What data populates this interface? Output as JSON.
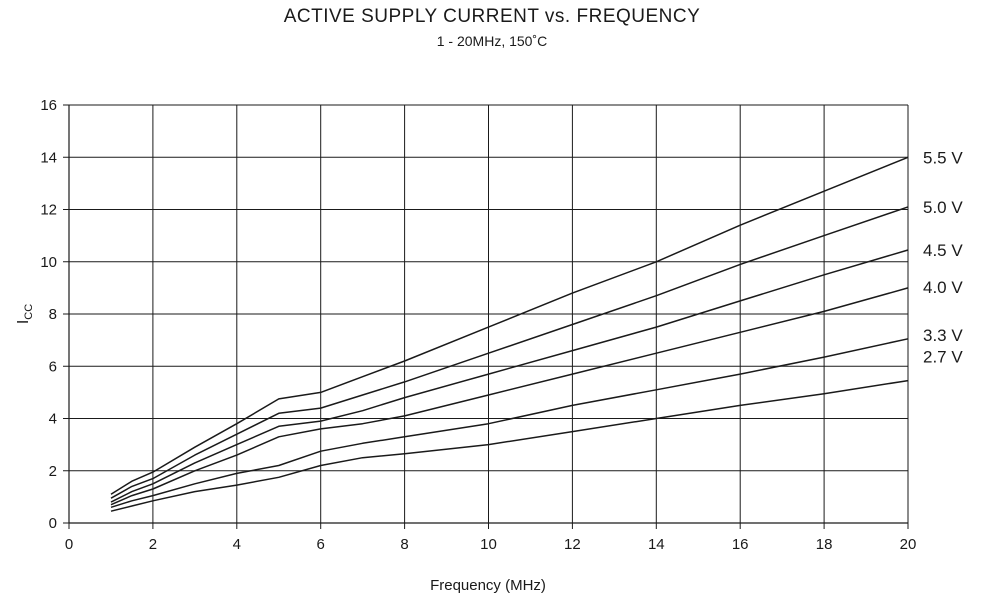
{
  "chart_data": {
    "type": "line",
    "title": "ACTIVE SUPPLY CURRENT vs. FREQUENCY",
    "subtitle": "1 - 20MHz, 150˚C",
    "xlabel": "Frequency (MHz)",
    "ylabel_main": "I",
    "ylabel_sub": "CC",
    "xlim": [
      0,
      20
    ],
    "ylim": [
      0,
      16
    ],
    "x_ticks": [
      "0",
      "2",
      "4",
      "6",
      "8",
      "10",
      "12",
      "14",
      "16",
      "18",
      "20"
    ],
    "y_ticks": [
      "0",
      "2",
      "4",
      "6",
      "8",
      "10",
      "12",
      "14",
      "16"
    ],
    "grid": true,
    "legend": "right-edge labels",
    "line_color": "#1a1a1a",
    "series": [
      {
        "name": "5.5 V",
        "x": [
          1,
          1.5,
          2,
          3,
          4,
          5,
          6,
          7,
          8,
          10,
          12,
          14,
          16,
          18,
          20
        ],
        "y": [
          1.1,
          1.6,
          1.95,
          2.9,
          3.8,
          4.75,
          5.0,
          5.6,
          6.2,
          7.5,
          8.8,
          10.0,
          11.4,
          12.7,
          14.0
        ]
      },
      {
        "name": "5.0 V",
        "x": [
          1,
          1.5,
          2,
          3,
          4,
          5,
          6,
          7,
          8,
          10,
          12,
          14,
          16,
          18,
          20
        ],
        "y": [
          0.95,
          1.4,
          1.7,
          2.6,
          3.4,
          4.2,
          4.4,
          4.9,
          5.4,
          6.5,
          7.6,
          8.7,
          9.9,
          11.0,
          12.1
        ]
      },
      {
        "name": "4.5 V",
        "x": [
          1,
          1.5,
          2,
          3,
          4,
          5,
          6,
          7,
          8,
          10,
          12,
          14,
          16,
          18,
          20
        ],
        "y": [
          0.8,
          1.2,
          1.5,
          2.3,
          3.0,
          3.7,
          3.9,
          4.3,
          4.8,
          5.7,
          6.6,
          7.5,
          8.5,
          9.5,
          10.45
        ]
      },
      {
        "name": "4.0 V",
        "x": [
          1,
          1.5,
          2,
          3,
          4,
          5,
          6,
          7,
          8,
          10,
          12,
          14,
          16,
          18,
          20
        ],
        "y": [
          0.7,
          1.05,
          1.3,
          2.0,
          2.6,
          3.3,
          3.6,
          3.8,
          4.1,
          4.9,
          5.7,
          6.5,
          7.3,
          8.1,
          9.0
        ]
      },
      {
        "name": "3.3 V",
        "x": [
          1,
          1.5,
          2,
          3,
          4,
          5,
          6,
          7,
          8,
          10,
          12,
          14,
          16,
          18,
          20
        ],
        "y": [
          0.6,
          0.85,
          1.05,
          1.5,
          1.9,
          2.2,
          2.75,
          3.05,
          3.3,
          3.8,
          4.5,
          5.1,
          5.7,
          6.35,
          7.05
        ]
      },
      {
        "name": "2.7 V",
        "x": [
          1,
          1.5,
          2,
          3,
          4,
          5,
          6,
          7,
          8,
          10,
          12,
          14,
          16,
          18,
          20
        ],
        "y": [
          0.45,
          0.65,
          0.85,
          1.2,
          1.45,
          1.75,
          2.2,
          2.5,
          2.65,
          3.0,
          3.5,
          4.0,
          4.5,
          4.95,
          5.45
        ]
      }
    ]
  }
}
